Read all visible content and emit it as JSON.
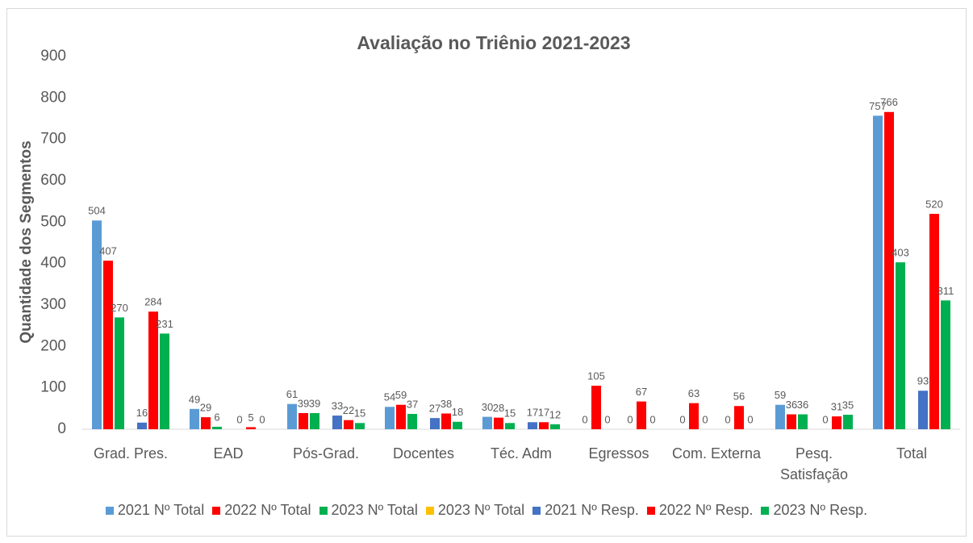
{
  "chart_data": {
    "type": "bar",
    "title": "Avaliação no Triênio 2021-2023",
    "y_label": "Quantidade dos Segmentos",
    "categories": [
      "Grad. Pres.",
      "EAD",
      "Pós-Grad.",
      "Docentes",
      "Téc. Adm",
      "Egressos",
      "Com. Externa",
      "Pesq. Satisfação",
      "Total"
    ],
    "series": [
      {
        "name": "2021 Nº Total",
        "color": "#5b9bd5",
        "values": [
          504,
          49,
          61,
          54,
          30,
          0,
          0,
          59,
          757
        ]
      },
      {
        "name": "2022 Nº Total",
        "color": "#ff0000",
        "values": [
          407,
          29,
          39,
          59,
          28,
          105,
          63,
          36,
          766
        ]
      },
      {
        "name": "2023 Nº Total",
        "color": "#00b050",
        "values": [
          270,
          6,
          39,
          37,
          15,
          0,
          0,
          36,
          403
        ]
      },
      {
        "name": "2023 Nº Total",
        "color": "#ffc000",
        "values": [
          null,
          null,
          null,
          null,
          null,
          null,
          null,
          null,
          null
        ]
      },
      {
        "name": "2021 Nº Resp.",
        "color": "#4472c4",
        "values": [
          16,
          0,
          33,
          27,
          17,
          0,
          0,
          0,
          93
        ]
      },
      {
        "name": "2022 Nº Resp.",
        "color": "#ff0000",
        "values": [
          284,
          5,
          22,
          38,
          17,
          67,
          56,
          31,
          520
        ]
      },
      {
        "name": "2023 Nº Resp.",
        "color": "#00b050",
        "values": [
          231,
          0,
          15,
          18,
          12,
          0,
          0,
          35,
          311
        ]
      }
    ],
    "ylim": [
      0,
      900
    ],
    "yticks": [
      0,
      100,
      200,
      300,
      400,
      500,
      600,
      700,
      800,
      900
    ],
    "grid": false,
    "legend": "bottom"
  }
}
